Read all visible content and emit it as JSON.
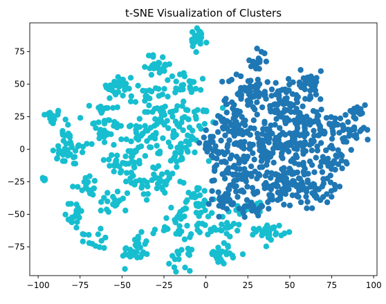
{
  "chart_data": {
    "type": "scatter",
    "title": "t-SNE Visualization of Clusters",
    "xlabel": "",
    "ylabel": "",
    "xlim": [
      -105,
      102
    ],
    "ylim": [
      -97,
      97
    ],
    "xticks": [
      -100,
      -75,
      -50,
      -25,
      0,
      25,
      50,
      75,
      100
    ],
    "yticks": [
      -75,
      -50,
      -25,
      0,
      25,
      50,
      75
    ],
    "grid": false,
    "legend": "none",
    "colors": {
      "cluster_a": "#17becf",
      "cluster_b": "#1f77b4"
    },
    "series": [
      {
        "color": "#17becf",
        "blobs": [
          {
            "cx": -92,
            "cy": 25,
            "sx": 3,
            "sy": 3,
            "n": 18
          },
          {
            "cx": -97,
            "cy": -23,
            "sx": 1.2,
            "sy": 1.2,
            "n": 5
          },
          {
            "cx": -80,
            "cy": -3,
            "sx": 6,
            "sy": 5,
            "n": 30
          },
          {
            "cx": -78,
            "cy": -50,
            "sx": 3,
            "sy": 6,
            "n": 18
          },
          {
            "cx": -72,
            "cy": -27,
            "sx": 4,
            "sy": 4,
            "n": 15
          },
          {
            "cx": -62,
            "cy": 15,
            "sx": 5,
            "sy": 8,
            "n": 25
          },
          {
            "cx": -52,
            "cy": 48,
            "sx": 5,
            "sy": 5,
            "n": 30
          },
          {
            "cx": -48,
            "cy": -10,
            "sx": 6,
            "sy": 6,
            "n": 35
          },
          {
            "cx": -55,
            "cy": -40,
            "sx": 5,
            "sy": 5,
            "n": 20
          },
          {
            "cx": -42,
            "cy": -78,
            "sx": 4,
            "sy": 6,
            "n": 35
          },
          {
            "cx": -40,
            "cy": 10,
            "sx": 6,
            "sy": 8,
            "n": 40
          },
          {
            "cx": -30,
            "cy": -25,
            "sx": 7,
            "sy": 6,
            "n": 40
          },
          {
            "cx": -28,
            "cy": 65,
            "sx": 4,
            "sy": 4,
            "n": 25
          },
          {
            "cx": -25,
            "cy": 25,
            "sx": 6,
            "sy": 6,
            "n": 35
          },
          {
            "cx": -20,
            "cy": -60,
            "sx": 6,
            "sy": 6,
            "n": 25
          },
          {
            "cx": -15,
            "cy": 0,
            "sx": 6,
            "sy": 8,
            "n": 40
          },
          {
            "cx": -15,
            "cy": -85,
            "sx": 3,
            "sy": 4,
            "n": 15
          },
          {
            "cx": -10,
            "cy": 50,
            "sx": 8,
            "sy": 4,
            "n": 25
          },
          {
            "cx": -5,
            "cy": 83,
            "sx": 3,
            "sy": 5,
            "n": 20
          },
          {
            "cx": -5,
            "cy": -40,
            "sx": 5,
            "sy": 8,
            "n": 35
          },
          {
            "cx": -5,
            "cy": 25,
            "sx": 5,
            "sy": 5,
            "n": 20
          },
          {
            "cx": 5,
            "cy": -60,
            "sx": 7,
            "sy": 4,
            "n": 25
          },
          {
            "cx": 10,
            "cy": -80,
            "sx": 4,
            "sy": 4,
            "n": 25
          },
          {
            "cx": 25,
            "cy": -45,
            "sx": 5,
            "sy": 3,
            "n": 15
          },
          {
            "cx": 38,
            "cy": -63,
            "sx": 4,
            "sy": 3,
            "n": 30
          },
          {
            "cx": -65,
            "cy": -70,
            "sx": 4,
            "sy": 3,
            "n": 12
          },
          {
            "cx": -35,
            "cy": 40,
            "sx": 5,
            "sy": 4,
            "n": 18
          },
          {
            "cx": -85,
            "cy": 10,
            "sx": 3,
            "sy": 3,
            "n": 10
          },
          {
            "cx": -60,
            "cy": 30,
            "sx": 4,
            "sy": 3,
            "n": 12
          }
        ]
      },
      {
        "color": "#1f77b4",
        "blobs": [
          {
            "cx": 15,
            "cy": 20,
            "sx": 6,
            "sy": 10,
            "n": 60
          },
          {
            "cx": 20,
            "cy": -20,
            "sx": 7,
            "sy": 9,
            "n": 60
          },
          {
            "cx": 25,
            "cy": 45,
            "sx": 6,
            "sy": 7,
            "n": 45
          },
          {
            "cx": 35,
            "cy": 5,
            "sx": 8,
            "sy": 10,
            "n": 80
          },
          {
            "cx": 40,
            "cy": -30,
            "sx": 7,
            "sy": 7,
            "n": 55
          },
          {
            "cx": 45,
            "cy": 35,
            "sx": 7,
            "sy": 8,
            "n": 55
          },
          {
            "cx": 55,
            "cy": 10,
            "sx": 7,
            "sy": 9,
            "n": 70
          },
          {
            "cx": 55,
            "cy": -20,
            "sx": 6,
            "sy": 8,
            "n": 55
          },
          {
            "cx": 60,
            "cy": 50,
            "sx": 6,
            "sy": 5,
            "n": 35
          },
          {
            "cx": 65,
            "cy": -35,
            "sx": 6,
            "sy": 5,
            "n": 30
          },
          {
            "cx": 70,
            "cy": 20,
            "sx": 6,
            "sy": 8,
            "n": 45
          },
          {
            "cx": 75,
            "cy": -10,
            "sx": 6,
            "sy": 7,
            "n": 40
          },
          {
            "cx": 85,
            "cy": 15,
            "sx": 5,
            "sy": 6,
            "n": 30
          },
          {
            "cx": 30,
            "cy": 68,
            "sx": 3,
            "sy": 4,
            "n": 15
          },
          {
            "cx": 5,
            "cy": 0,
            "sx": 4,
            "sy": 8,
            "n": 30
          },
          {
            "cx": 10,
            "cy": -40,
            "sx": 5,
            "sy": 5,
            "n": 25
          },
          {
            "cx": 30,
            "cy": -45,
            "sx": 5,
            "sy": 4,
            "n": 20
          },
          {
            "cx": 90,
            "cy": 30,
            "sx": 3,
            "sy": 3,
            "n": 12
          }
        ]
      }
    ]
  }
}
